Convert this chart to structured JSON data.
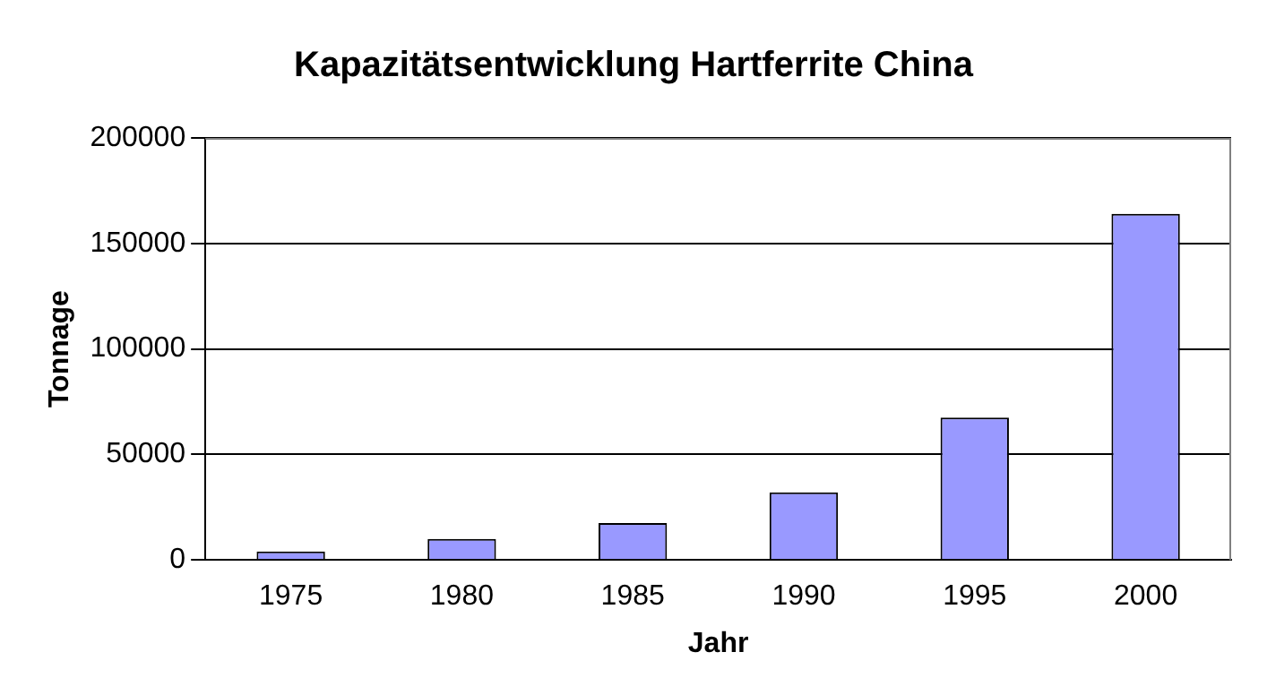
{
  "chart_data": {
    "type": "bar",
    "title": "Kapazitätsentwicklung Hartferrite China",
    "xlabel": "Jahr",
    "ylabel": "Tonnage",
    "categories": [
      "1975",
      "1980",
      "1985",
      "1990",
      "1995",
      "2000"
    ],
    "values": [
      4000,
      10000,
      17500,
      32000,
      67500,
      164000
    ],
    "color": "#9999ff",
    "ylim": [
      0,
      200000
    ],
    "yticks": [
      0,
      50000,
      100000,
      150000,
      200000
    ],
    "grid": "y",
    "legend": false
  }
}
